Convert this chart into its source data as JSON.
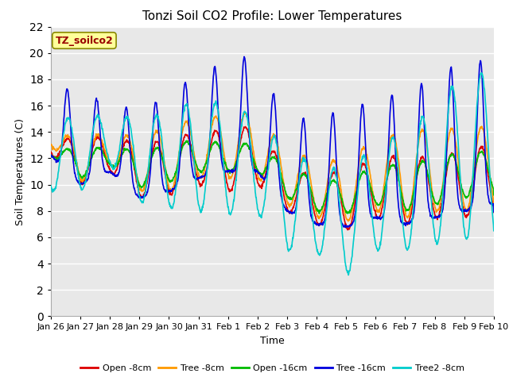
{
  "title": "Tonzi Soil CO2 Profile: Lower Temperatures",
  "ylabel": "Soil Temperatures (C)",
  "xlabel": "Time",
  "tag": "TZ_soilco2",
  "ylim": [
    0,
    22
  ],
  "fig_facecolor": "#ffffff",
  "ax_facecolor": "#e8e8e8",
  "series": {
    "Open -8cm": {
      "color": "#dd0000",
      "lw": 1.2
    },
    "Tree -8cm": {
      "color": "#ff9900",
      "lw": 1.2
    },
    "Open -16cm": {
      "color": "#00bb00",
      "lw": 1.2
    },
    "Tree -16cm": {
      "color": "#0000dd",
      "lw": 1.2
    },
    "Tree2 -8cm": {
      "color": "#00cccc",
      "lw": 1.2
    }
  },
  "xtick_labels": [
    "Jan 26",
    "Jan 27",
    "Jan 28",
    "Jan 29",
    "Jan 30",
    "Jan 31",
    "Feb 1",
    "Feb 2",
    "Feb 3",
    "Feb 4",
    "Feb 5",
    "Feb 6",
    "Feb 7",
    "Feb 8",
    "Feb 9",
    "Feb 10"
  ],
  "n_days": 15,
  "pts_per_day": 96,
  "grid_color": "#d0d0d0",
  "title_fontsize": 11,
  "label_fontsize": 9,
  "tick_fontsize": 8
}
